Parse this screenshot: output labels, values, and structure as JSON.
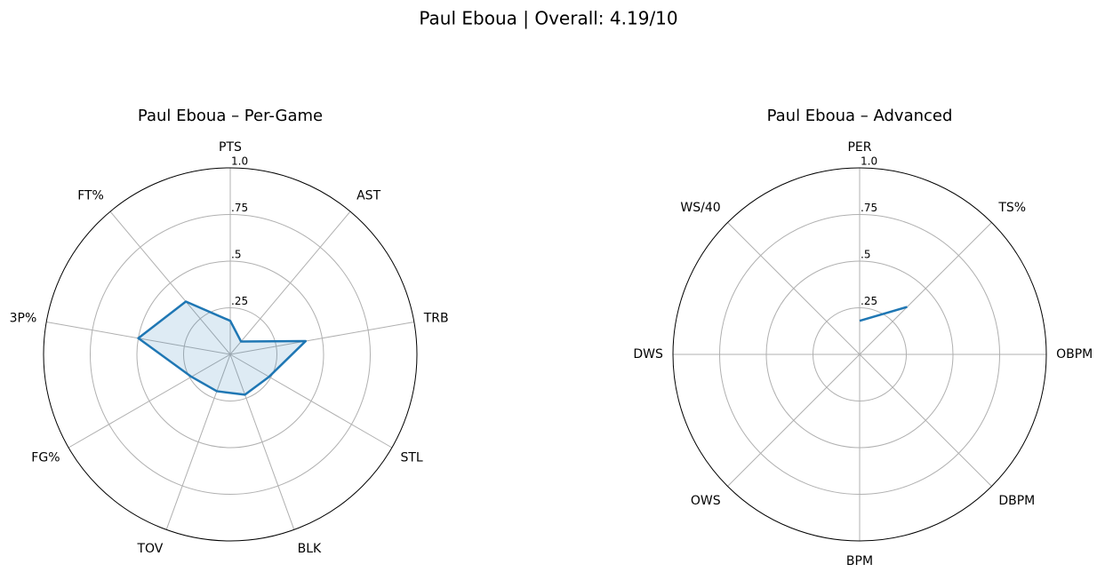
{
  "title": "Paul Eboua | Overall: 4.19/10",
  "chart_data": [
    {
      "type": "radar",
      "title": "Paul Eboua – Per-Game",
      "categories": [
        "PTS",
        "AST",
        "TRB",
        "STL",
        "BLK",
        "TOV",
        "FG%",
        "3P%",
        "FT%"
      ],
      "values": [
        0.18,
        0.09,
        0.41,
        0.24,
        0.23,
        0.21,
        0.24,
        0.5,
        0.37
      ],
      "color": "#1f77b4",
      "fill": true,
      "ylim": [
        0,
        1
      ],
      "yticks": [
        {
          "value": 0.25,
          "label": ".25"
        },
        {
          "value": 0.5,
          "label": ".5"
        },
        {
          "value": 0.75,
          "label": ".75"
        },
        {
          "value": 1.0,
          "label": "1.0"
        }
      ],
      "grid": true
    },
    {
      "type": "radar",
      "title": "Paul Eboua – Advanced",
      "categories": [
        "PER",
        "TS%",
        "OBPM",
        "DBPM",
        "BPM",
        "OWS",
        "DWS",
        "WS/40"
      ],
      "values": [
        0.18,
        0.36,
        null,
        null,
        null,
        null,
        null,
        null
      ],
      "color": "#1f77b4",
      "fill": true,
      "ylim": [
        0,
        1
      ],
      "yticks": [
        {
          "value": 0.25,
          "label": ".25"
        },
        {
          "value": 0.5,
          "label": ".5"
        },
        {
          "value": 0.75,
          "label": ".75"
        },
        {
          "value": 1.0,
          "label": "1.0"
        }
      ],
      "grid": true
    }
  ]
}
